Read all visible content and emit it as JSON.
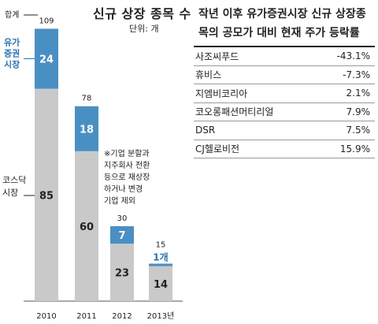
{
  "title": "신규 상장 종목 수",
  "unit": "단위: 개",
  "total_label": "합계",
  "kospi_label": [
    "유가",
    "증권",
    "시장"
  ],
  "kosdaq_label": [
    "코스닥",
    "시장"
  ],
  "note": [
    "※기업 분할과",
    "지주회사 전환",
    "등으로 재상장",
    "하거나 변경",
    "기업 제외"
  ],
  "colors": {
    "kospi": "#4a8fc4",
    "kosdaq": "#c9c9c9",
    "kospi_text": "#2a74b2",
    "axis": "#555555"
  },
  "chart_data": {
    "type": "bar",
    "stacked": true,
    "categories": [
      "2010",
      "2011",
      "2012",
      "2013년"
    ],
    "series": [
      {
        "name": "코스닥 시장",
        "values": [
          85,
          60,
          23,
          14
        ],
        "labels": [
          "85",
          "60",
          "23",
          "14"
        ]
      },
      {
        "name": "유가증권시장",
        "values": [
          24,
          18,
          7,
          1
        ],
        "labels": [
          "24",
          "18",
          "7",
          "1개"
        ]
      }
    ],
    "totals": [
      109,
      78,
      30,
      15
    ]
  },
  "table": {
    "title_lines": [
      "작년 이후 유가증권시장 신규 상장종",
      "목의 공모가 대비 현재 주가 등락률"
    ],
    "rows": [
      {
        "name": "사조씨푸드",
        "value": "-43.1%"
      },
      {
        "name": "휴비스",
        "value": "-7.3%"
      },
      {
        "name": "지엠비코리아",
        "value": "2.1%"
      },
      {
        "name": "코오롱패션머티리얼",
        "value": "7.9%"
      },
      {
        "name": "DSR",
        "value": "7.5%"
      },
      {
        "name": "CJ헬로비전",
        "value": "15.9%"
      }
    ]
  }
}
